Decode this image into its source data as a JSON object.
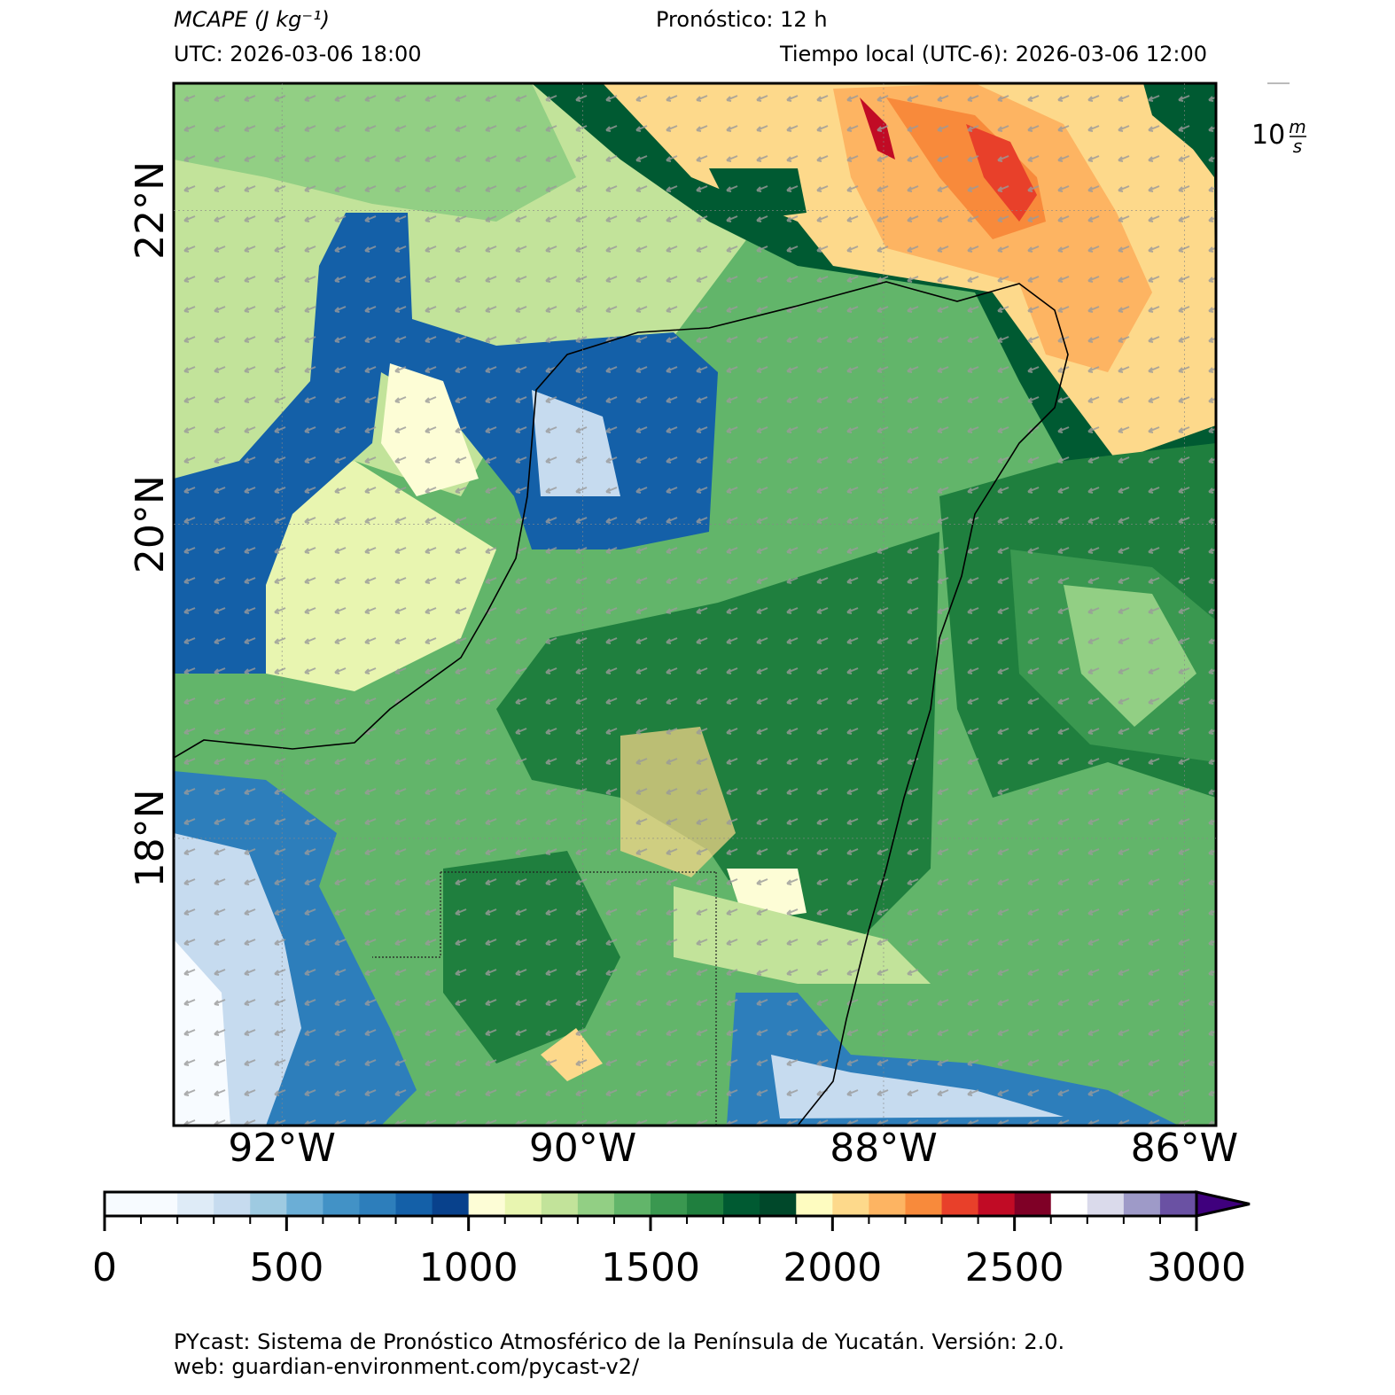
{
  "header": {
    "variable": "MCAPE (J kg⁻¹)",
    "forecast": "Pronóstico: 12 h",
    "utc": "UTC:  2026-03-06 18:00",
    "local": "Tiempo local (UTC-6): 2026-03-06 12:00"
  },
  "wind_key": {
    "value": "10",
    "unit_num": "m",
    "unit_den": "s"
  },
  "map": {
    "xlim": [
      -92.72,
      -85.79
    ],
    "ylim": [
      16.17,
      22.81
    ],
    "xticks": [
      {
        "value": -92,
        "label": "92°W"
      },
      {
        "value": -90,
        "label": "90°W"
      },
      {
        "value": -88,
        "label": "88°W"
      },
      {
        "value": -86,
        "label": "86°W"
      }
    ],
    "yticks": [
      {
        "value": 18,
        "label": "18°N"
      },
      {
        "value": 20,
        "label": "20°N"
      },
      {
        "value": 22,
        "label": "22°N"
      }
    ]
  },
  "colorbar": {
    "lim": [
      0,
      3000
    ],
    "levels": [
      0,
      100,
      200,
      300,
      400,
      500,
      600,
      700,
      800,
      900,
      1000,
      1100,
      1200,
      1300,
      1400,
      1500,
      1600,
      1700,
      1800,
      1900,
      2000,
      2100,
      2200,
      2300,
      2400,
      2500,
      2600,
      2700,
      2800,
      2900,
      3000
    ],
    "colors": [
      "#f7fbff",
      "#f7fbff",
      "#deebf7",
      "#c6dbef",
      "#9ecae1",
      "#6baed6",
      "#4292c6",
      "#2d7ebb",
      "#1460a8",
      "#08418c",
      "#fdfdd6",
      "#e8f5b0",
      "#c2e39a",
      "#92cf84",
      "#62b56a",
      "#3a9850",
      "#1f7f3e",
      "#005a32",
      "#00482a",
      "#fefcc0",
      "#fdd98b",
      "#fdb462",
      "#f88a3b",
      "#e8402a",
      "#c10b25",
      "#7f0026",
      "#ffffff",
      "#dadaeb",
      "#9e9ac8",
      "#6a51a3",
      "#3f007d"
    ],
    "ticks": [
      0,
      500,
      1000,
      1500,
      2000,
      2500,
      3000
    ]
  },
  "footer": {
    "line1": "PYcast: Sistema de Pronóstico Atmosférico de la Península de Yucatán. Versión: 2.0.",
    "line2": "web: guardian-environment.com/pycast-v2/"
  }
}
